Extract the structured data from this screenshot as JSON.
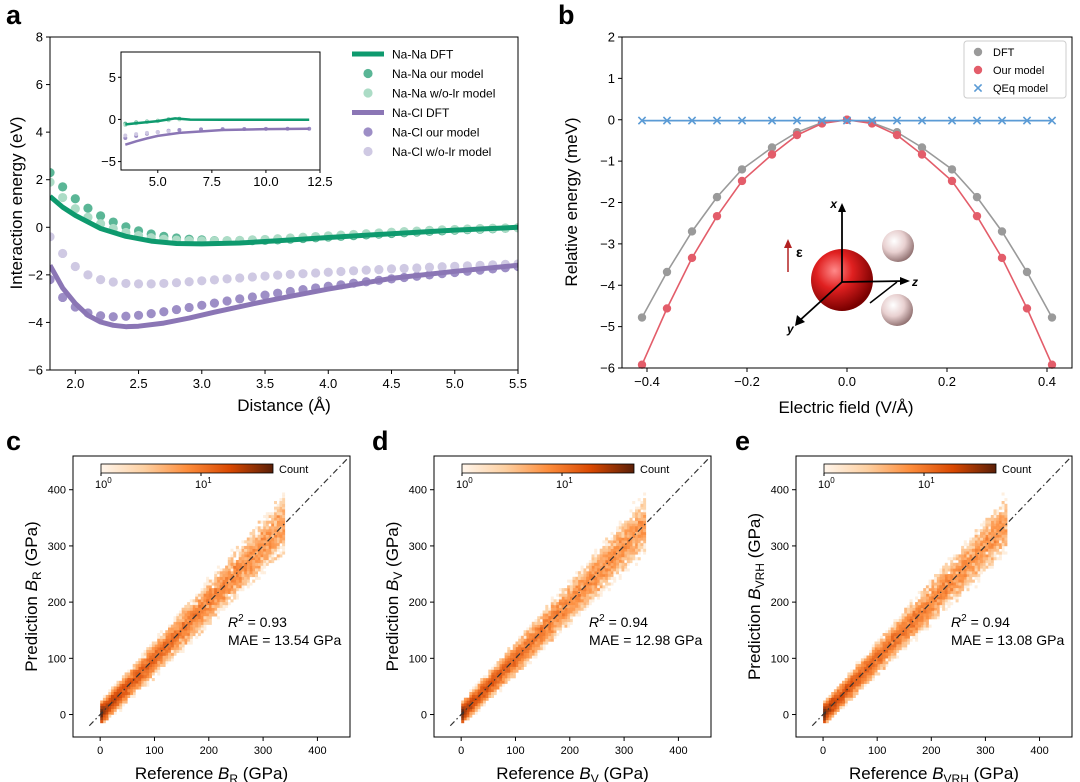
{
  "chart_data": [
    {
      "panel": "a",
      "type": "line",
      "xlabel": "Distance (Å)",
      "ylabel": "Interaction energy (eV)",
      "xlim": [
        1.8,
        5.5
      ],
      "ylim": [
        -6,
        8
      ],
      "xticks": [
        "2.0",
        "2.5",
        "3.0",
        "3.5",
        "4.0",
        "4.5",
        "5.0",
        "5.5"
      ],
      "yticks": [
        "−6",
        "−4",
        "−2",
        "0",
        "2",
        "4",
        "6",
        "8"
      ],
      "legend_position": "top-right",
      "colors": {
        "nana_dft": "#0e9a6e",
        "nana_model": "#5ab696",
        "nana_wolr": "#acdcc6",
        "nacl_dft": "#8b76b5",
        "nacl_model": "#9d8ec6",
        "nacl_wolr": "#cfc9e3"
      },
      "series": [
        {
          "name": "Na-Na DFT",
          "style": "line",
          "points": [
            [
              1.8,
              1.3
            ],
            [
              1.9,
              0.85
            ],
            [
              2.0,
              0.5
            ],
            [
              2.2,
              -0.05
            ],
            [
              2.4,
              -0.38
            ],
            [
              2.6,
              -0.58
            ],
            [
              2.8,
              -0.68
            ],
            [
              3.0,
              -0.7
            ],
            [
              3.3,
              -0.66
            ],
            [
              3.6,
              -0.57
            ],
            [
              4.0,
              -0.43
            ],
            [
              4.5,
              -0.27
            ],
            [
              5.0,
              -0.12
            ],
            [
              5.5,
              0.0
            ]
          ]
        },
        {
          "name": "Na-Na our model",
          "style": "markers",
          "x": [
            1.8,
            1.9,
            2.0,
            2.1,
            2.2,
            2.3,
            2.4,
            2.5,
            2.6,
            2.7,
            2.8,
            2.9,
            3.0,
            3.1,
            3.2,
            3.3,
            3.4,
            3.5,
            3.6,
            3.7,
            3.8,
            3.9,
            4.0,
            4.1,
            4.2,
            4.3,
            4.4,
            4.5,
            4.6,
            4.7,
            4.8,
            4.9,
            5.0,
            5.1,
            5.2,
            5.3,
            5.4,
            5.5
          ],
          "y": [
            2.3,
            1.7,
            1.2,
            0.8,
            0.48,
            0.22,
            0.02,
            -0.15,
            -0.28,
            -0.38,
            -0.45,
            -0.5,
            -0.53,
            -0.56,
            -0.57,
            -0.57,
            -0.56,
            -0.55,
            -0.53,
            -0.5,
            -0.47,
            -0.44,
            -0.41,
            -0.38,
            -0.35,
            -0.32,
            -0.29,
            -0.26,
            -0.23,
            -0.2,
            -0.17,
            -0.15,
            -0.12,
            -0.1,
            -0.08,
            -0.06,
            -0.04,
            -0.02
          ]
        },
        {
          "name": "Na-Na w/o-lr model",
          "style": "markers",
          "x": [
            1.8,
            1.9,
            2.0,
            2.1,
            2.2,
            2.3,
            2.4,
            2.5,
            2.6,
            2.7,
            2.8,
            2.9,
            3.0,
            3.1,
            3.2,
            3.3,
            3.4,
            3.5,
            3.6,
            3.7,
            3.8,
            3.9,
            4.0,
            4.1,
            4.2,
            4.3,
            4.4,
            4.5,
            4.6,
            4.7,
            4.8,
            4.9,
            5.0,
            5.1,
            5.2,
            5.3,
            5.4,
            5.5
          ],
          "y": [
            1.9,
            1.25,
            0.78,
            0.42,
            0.15,
            -0.05,
            -0.22,
            -0.35,
            -0.44,
            -0.5,
            -0.54,
            -0.56,
            -0.57,
            -0.57,
            -0.56,
            -0.55,
            -0.53,
            -0.51,
            -0.48,
            -0.45,
            -0.42,
            -0.39,
            -0.36,
            -0.33,
            -0.3,
            -0.27,
            -0.24,
            -0.21,
            -0.18,
            -0.16,
            -0.13,
            -0.11,
            -0.09,
            -0.07,
            -0.05,
            -0.04,
            -0.03,
            -0.02
          ]
        },
        {
          "name": "Na-Cl DFT",
          "style": "line",
          "points": [
            [
              1.8,
              -1.6
            ],
            [
              1.9,
              -2.55
            ],
            [
              2.0,
              -3.2
            ],
            [
              2.1,
              -3.7
            ],
            [
              2.2,
              -3.98
            ],
            [
              2.3,
              -4.12
            ],
            [
              2.4,
              -4.18
            ],
            [
              2.5,
              -4.16
            ],
            [
              2.7,
              -4.03
            ],
            [
              2.9,
              -3.82
            ],
            [
              3.1,
              -3.57
            ],
            [
              3.4,
              -3.22
            ],
            [
              3.7,
              -2.9
            ],
            [
              4.0,
              -2.6
            ],
            [
              4.5,
              -2.15
            ],
            [
              5.0,
              -1.85
            ],
            [
              5.5,
              -1.6
            ]
          ]
        },
        {
          "name": "Na-Cl our model",
          "style": "markers",
          "x": [
            1.8,
            1.9,
            2.0,
            2.1,
            2.2,
            2.3,
            2.4,
            2.5,
            2.6,
            2.7,
            2.8,
            2.9,
            3.0,
            3.1,
            3.2,
            3.3,
            3.4,
            3.5,
            3.6,
            3.7,
            3.8,
            3.9,
            4.0,
            4.1,
            4.2,
            4.3,
            4.4,
            4.5,
            4.6,
            4.7,
            4.8,
            4.9,
            5.0,
            5.1,
            5.2,
            5.3,
            5.4,
            5.5
          ],
          "y": [
            -2.2,
            -2.95,
            -3.35,
            -3.6,
            -3.72,
            -3.76,
            -3.74,
            -3.7,
            -3.63,
            -3.55,
            -3.46,
            -3.37,
            -3.28,
            -3.19,
            -3.1,
            -3.01,
            -2.93,
            -2.85,
            -2.77,
            -2.7,
            -2.62,
            -2.55,
            -2.48,
            -2.42,
            -2.35,
            -2.29,
            -2.23,
            -2.17,
            -2.11,
            -2.06,
            -2.0,
            -1.95,
            -1.9,
            -1.85,
            -1.8,
            -1.75,
            -1.7,
            -1.65
          ]
        },
        {
          "name": "Na-Cl w/o-lr model",
          "style": "markers",
          "x": [
            1.8,
            1.9,
            2.0,
            2.1,
            2.2,
            2.3,
            2.4,
            2.5,
            2.6,
            2.7,
            2.8,
            2.9,
            3.0,
            3.1,
            3.2,
            3.3,
            3.4,
            3.5,
            3.6,
            3.7,
            3.8,
            3.9,
            4.0,
            4.1,
            4.2,
            4.3,
            4.4,
            4.5,
            4.6,
            4.7,
            4.8,
            4.9,
            5.0,
            5.1,
            5.2,
            5.3,
            5.4,
            5.5
          ],
          "y": [
            -0.4,
            -1.1,
            -1.65,
            -2.0,
            -2.2,
            -2.3,
            -2.36,
            -2.38,
            -2.38,
            -2.36,
            -2.33,
            -2.29,
            -2.25,
            -2.21,
            -2.17,
            -2.13,
            -2.09,
            -2.05,
            -2.01,
            -1.98,
            -1.95,
            -1.92,
            -1.89,
            -1.86,
            -1.83,
            -1.8,
            -1.78,
            -1.75,
            -1.73,
            -1.71,
            -1.68,
            -1.66,
            -1.64,
            -1.62,
            -1.6,
            -1.58,
            -1.56,
            -1.54
          ]
        }
      ],
      "inset": {
        "xlim": [
          3.3,
          12.5
        ],
        "ylim": [
          -6.0,
          8.0
        ],
        "xticks": [
          "5.0",
          "7.5",
          "10.0",
          "12.5"
        ],
        "yticks": [
          "−5",
          "0",
          "5"
        ],
        "series": [
          {
            "name": "Na-Na DFT",
            "points": [
              [
                3.5,
                -0.6
              ],
              [
                4.0,
                -0.45
              ],
              [
                5.0,
                -0.2
              ],
              [
                5.8,
                0.12
              ],
              [
                6.5,
                -0.02
              ],
              [
                8.0,
                -0.03
              ],
              [
                10.0,
                -0.03
              ],
              [
                12.0,
                -0.03
              ]
            ]
          },
          {
            "name": "Na-Na our model",
            "points": [
              [
                3.5,
                -0.5
              ],
              [
                4.0,
                -0.35
              ],
              [
                4.5,
                -0.25
              ],
              [
                5.0,
                -0.15
              ],
              [
                5.5,
                0.0
              ],
              [
                6.0,
                0.08
              ]
            ]
          },
          {
            "name": "Na-Na w/o-lr model",
            "points": [
              [
                3.5,
                -0.65
              ],
              [
                4.0,
                -0.45
              ],
              [
                4.5,
                -0.3
              ],
              [
                5.0,
                -0.2
              ],
              [
                5.5,
                -0.1
              ],
              [
                6.0,
                0.0
              ]
            ]
          },
          {
            "name": "Na-Cl DFT",
            "points": [
              [
                3.5,
                -3.0
              ],
              [
                4.0,
                -2.6
              ],
              [
                4.5,
                -2.25
              ],
              [
                5.0,
                -1.95
              ],
              [
                6.0,
                -1.6
              ],
              [
                8.0,
                -1.25
              ],
              [
                10.0,
                -1.15
              ],
              [
                12.0,
                -1.1
              ]
            ]
          },
          {
            "name": "Na-Cl our model",
            "points": [
              [
                3.5,
                -2.2
              ],
              [
                4.0,
                -1.95
              ],
              [
                4.5,
                -1.7
              ],
              [
                5.0,
                -1.5
              ],
              [
                5.5,
                -1.35
              ],
              [
                6.0,
                -1.25
              ],
              [
                7.0,
                -1.18
              ],
              [
                8.0,
                -1.15
              ],
              [
                9.0,
                -1.13
              ],
              [
                10.0,
                -1.12
              ],
              [
                11.0,
                -1.11
              ],
              [
                12.0,
                -1.1
              ]
            ]
          },
          {
            "name": "Na-Cl w/o-lr model",
            "points": [
              [
                3.5,
                -1.9
              ],
              [
                4.0,
                -1.75
              ],
              [
                4.5,
                -1.6
              ],
              [
                5.0,
                -1.5
              ],
              [
                5.5,
                -1.4
              ]
            ]
          }
        ]
      }
    },
    {
      "panel": "b",
      "type": "line",
      "xlabel": "Electric field (V/Å)",
      "ylabel": "Relative energy (meV)",
      "xlim": [
        -0.45,
        0.45
      ],
      "ylim": [
        -6,
        2
      ],
      "xticks": [
        "−0.4",
        "−0.2",
        "0.0",
        "0.2",
        "0.4"
      ],
      "yticks": [
        "−6",
        "−5",
        "−4",
        "−3",
        "−2",
        "−1",
        "0",
        "1",
        "2"
      ],
      "legend_position": "top-right",
      "colors": {
        "dft": "#9a9a9a",
        "our_model": "#e35d6a",
        "qeq": "#5b9bd5"
      },
      "x": [
        -0.41,
        -0.36,
        -0.31,
        -0.26,
        -0.21,
        -0.15,
        -0.1,
        -0.05,
        0.0,
        0.05,
        0.1,
        0.15,
        0.21,
        0.26,
        0.31,
        0.36,
        0.41
      ],
      "series": [
        {
          "name": "DFT",
          "values": [
            -4.78,
            -3.68,
            -2.7,
            -1.87,
            -1.2,
            -0.67,
            -0.3,
            -0.07,
            0.0,
            -0.07,
            -0.3,
            -0.67,
            -1.2,
            -1.87,
            -2.7,
            -3.68,
            -4.78
          ]
        },
        {
          "name": "Our model",
          "values": [
            -5.92,
            -4.56,
            -3.34,
            -2.33,
            -1.48,
            -0.84,
            -0.37,
            -0.09,
            0.0,
            -0.09,
            -0.37,
            -0.84,
            -1.48,
            -2.33,
            -3.34,
            -4.56,
            -5.92
          ]
        },
        {
          "name": "QEq model",
          "values": [
            -0.02,
            -0.02,
            -0.02,
            -0.02,
            -0.02,
            -0.02,
            -0.02,
            -0.02,
            -0.02,
            -0.02,
            -0.02,
            -0.02,
            -0.02,
            -0.02,
            -0.02,
            -0.02,
            -0.02
          ]
        }
      ],
      "molecule_labels": {
        "field": "ε",
        "x": "x",
        "y": "y",
        "z": "z"
      }
    },
    {
      "panel": "c",
      "type": "heatmap",
      "xlabel_main": "Reference ",
      "xlabel_var": "B",
      "xlabel_sub": "R",
      "xlabel_unit": " (GPa)",
      "ylabel_main": "Prediction ",
      "ylabel_var": "B",
      "ylabel_sub": "R",
      "ylabel_unit": " (GPa)",
      "xlim": [
        -50,
        460
      ],
      "ylim": [
        -40,
        460
      ],
      "xticks": [
        "0",
        "100",
        "200",
        "300",
        "400"
      ],
      "yticks": [
        "0",
        "100",
        "200",
        "300",
        "400"
      ],
      "colorbar_label": "Count",
      "colorbar_ticks": [
        "10",
        "10"
      ],
      "colorbar_ticks_exp": [
        "0",
        "1"
      ],
      "r2": " = 0.93",
      "mae": "MAE = 13.54 GPa",
      "spread": 1.0
    },
    {
      "panel": "d",
      "type": "heatmap",
      "xlabel_main": "Reference ",
      "xlabel_var": "B",
      "xlabel_sub": "V",
      "xlabel_unit": " (GPa)",
      "ylabel_main": "Prediction ",
      "ylabel_var": "B",
      "ylabel_sub": "V",
      "ylabel_unit": " (GPa)",
      "xlim": [
        -50,
        460
      ],
      "ylim": [
        -40,
        460
      ],
      "xticks": [
        "0",
        "100",
        "200",
        "300",
        "400"
      ],
      "yticks": [
        "0",
        "100",
        "200",
        "300",
        "400"
      ],
      "colorbar_label": "Count",
      "colorbar_ticks": [
        "10",
        "10"
      ],
      "colorbar_ticks_exp": [
        "0",
        "1"
      ],
      "r2": " = 0.94",
      "mae": "MAE = 12.98 GPa",
      "spread": 0.95
    },
    {
      "panel": "e",
      "type": "heatmap",
      "xlabel_main": "Reference ",
      "xlabel_var": "B",
      "xlabel_sub": "VRH",
      "xlabel_unit": " (GPa)",
      "ylabel_main": "Prediction ",
      "ylabel_var": "B",
      "ylabel_sub": "VRH",
      "ylabel_unit": " (GPa)",
      "xlim": [
        -50,
        460
      ],
      "ylim": [
        -40,
        460
      ],
      "xticks": [
        "0",
        "100",
        "200",
        "300",
        "400"
      ],
      "yticks": [
        "0",
        "100",
        "200",
        "300",
        "400"
      ],
      "colorbar_label": "Count",
      "colorbar_ticks": [
        "10",
        "10"
      ],
      "colorbar_ticks_exp": [
        "0",
        "1"
      ],
      "r2": " = 0.94",
      "mae": "MAE = 13.08 GPa",
      "spread": 0.97
    }
  ],
  "panel_letters": [
    "a",
    "b",
    "c",
    "d",
    "e"
  ]
}
